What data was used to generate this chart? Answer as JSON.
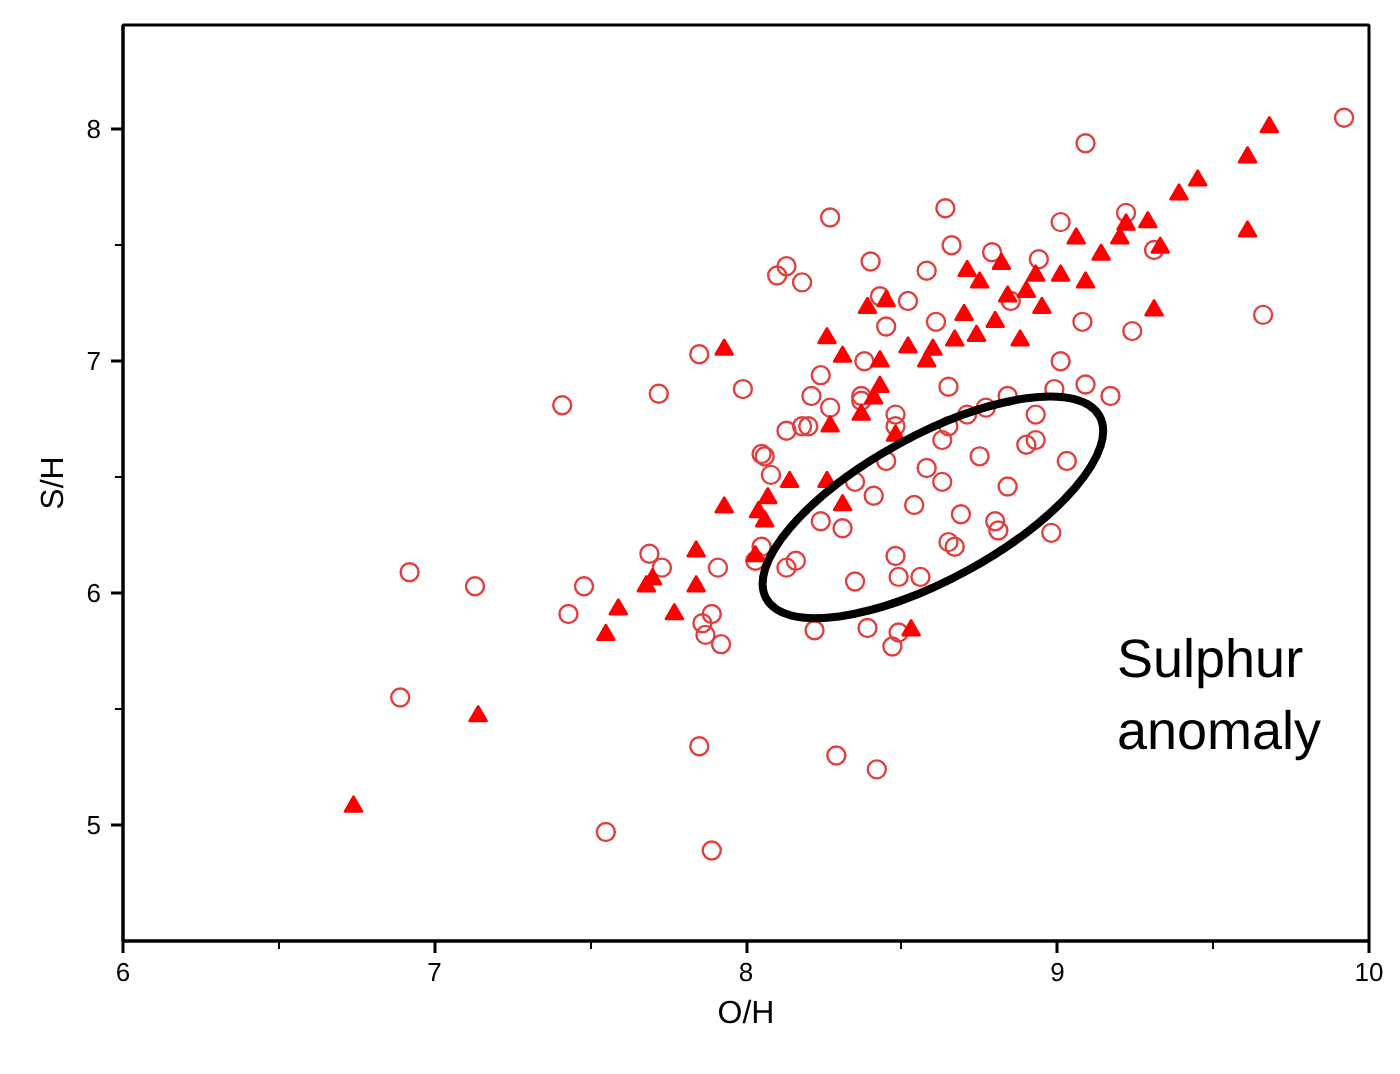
{
  "chart_data": {
    "type": "scatter",
    "xlabel": "O/H",
    "ylabel": "S/H",
    "xlim": [
      6,
      10
    ],
    "ylim": [
      4.5,
      8.45
    ],
    "xticks": [
      6,
      7,
      8,
      9,
      10
    ],
    "yticks": [
      5,
      6,
      7,
      8
    ],
    "grid": false,
    "annotations": [
      "Sulphur\nanomaly"
    ],
    "series": [
      {
        "color": "#e04040",
        "marker": "circle_open",
        "x": [
          6.92,
          7.13,
          6.89,
          7.41,
          7.72,
          7.85,
          7.99,
          7.48,
          7.43,
          7.69,
          7.73,
          7.91,
          7.89,
          7.86,
          7.87,
          7.92,
          7.85,
          7.55,
          7.89,
          8.05,
          8.08,
          8.05,
          8.29,
          8.42,
          8.39,
          8.49,
          8.49,
          9.92,
          9.09,
          8.64,
          8.27,
          8.1,
          8.13,
          8.18,
          8.4,
          9.66,
          9.24,
          9.17,
          9.01,
          9.22,
          9.31,
          9.08,
          8.66,
          8.79,
          8.94,
          8.58,
          8.52,
          8.61,
          8.45,
          8.38,
          8.24,
          8.21,
          8.27,
          8.18,
          8.13,
          8.06,
          8.37,
          8.48,
          8.65,
          8.71,
          8.84,
          8.93,
          9.01,
          9.09,
          8.63,
          8.75,
          8.58,
          8.9,
          8.99,
          8.98,
          8.81,
          8.65,
          8.48,
          8.35,
          8.22,
          8.47,
          8.56,
          8.93,
          8.41,
          8.54,
          8.69,
          8.84,
          8.31,
          8.24,
          8.16,
          8.13,
          8.03,
          8.2,
          8.37,
          8.48,
          8.65,
          8.77,
          9.03,
          8.45,
          8.63,
          8.35,
          8.8,
          8.67,
          8.43,
          8.85
        ],
        "values": [
          6.09,
          6.03,
          5.55,
          6.81,
          6.86,
          7.03,
          6.88,
          6.03,
          5.91,
          6.17,
          6.11,
          6.11,
          5.91,
          5.87,
          5.82,
          5.78,
          5.34,
          4.97,
          4.89,
          6.6,
          6.51,
          6.2,
          5.3,
          5.24,
          5.85,
          5.83,
          6.07,
          8.05,
          7.94,
          7.66,
          7.62,
          7.37,
          7.41,
          7.34,
          7.43,
          7.2,
          7.13,
          6.85,
          7.6,
          7.64,
          7.48,
          7.17,
          7.5,
          7.47,
          7.44,
          7.39,
          7.26,
          7.17,
          7.15,
          7.0,
          6.94,
          6.85,
          6.8,
          6.72,
          6.7,
          6.59,
          6.85,
          6.77,
          6.89,
          6.77,
          6.85,
          6.77,
          7.0,
          6.9,
          6.66,
          6.59,
          6.54,
          6.64,
          6.88,
          6.26,
          6.27,
          6.22,
          6.16,
          6.05,
          5.84,
          5.77,
          6.07,
          6.66,
          6.42,
          6.38,
          6.34,
          6.46,
          6.28,
          6.31,
          6.14,
          6.11,
          6.14,
          6.72,
          6.83,
          6.72,
          6.72,
          6.8,
          6.57,
          6.57,
          6.48,
          6.48,
          6.31,
          6.2,
          7.28,
          7.26
        ]
      },
      {
        "color": "#ff0000",
        "marker": "triangle",
        "x": [
          7.93,
          7.93,
          8.04,
          8.07,
          8.06,
          8.03,
          7.84,
          7.84,
          7.68,
          7.7,
          7.59,
          7.55,
          7.77,
          7.14,
          6.74,
          8.53,
          9.68,
          9.61,
          9.45,
          9.39,
          9.61,
          9.31,
          9.33,
          9.29,
          9.22,
          9.2,
          9.14,
          9.06,
          9.09,
          9.01,
          8.95,
          8.93,
          8.82,
          8.75,
          8.71,
          8.84,
          8.8,
          8.88,
          8.74,
          8.67,
          8.58,
          8.52,
          8.45,
          8.39,
          8.31,
          8.26,
          8.43,
          8.43,
          8.37,
          8.27,
          8.48,
          8.31,
          8.26,
          8.14,
          8.41,
          8.6,
          8.7,
          8.9
        ],
        "values": [
          7.05,
          6.37,
          6.35,
          6.41,
          6.31,
          6.16,
          6.18,
          6.03,
          6.03,
          6.06,
          5.93,
          5.82,
          5.91,
          5.47,
          5.08,
          5.84,
          8.01,
          7.88,
          7.78,
          7.72,
          7.56,
          7.22,
          7.49,
          7.6,
          7.59,
          7.53,
          7.46,
          7.53,
          7.34,
          7.37,
          7.23,
          7.37,
          7.42,
          7.34,
          7.39,
          7.28,
          7.17,
          7.09,
          7.11,
          7.09,
          7.0,
          7.06,
          7.26,
          7.23,
          7.02,
          7.1,
          7.0,
          6.89,
          6.77,
          6.72,
          6.68,
          6.38,
          6.48,
          6.48,
          6.84,
          7.05,
          7.2,
          7.3
        ]
      }
    ]
  }
}
